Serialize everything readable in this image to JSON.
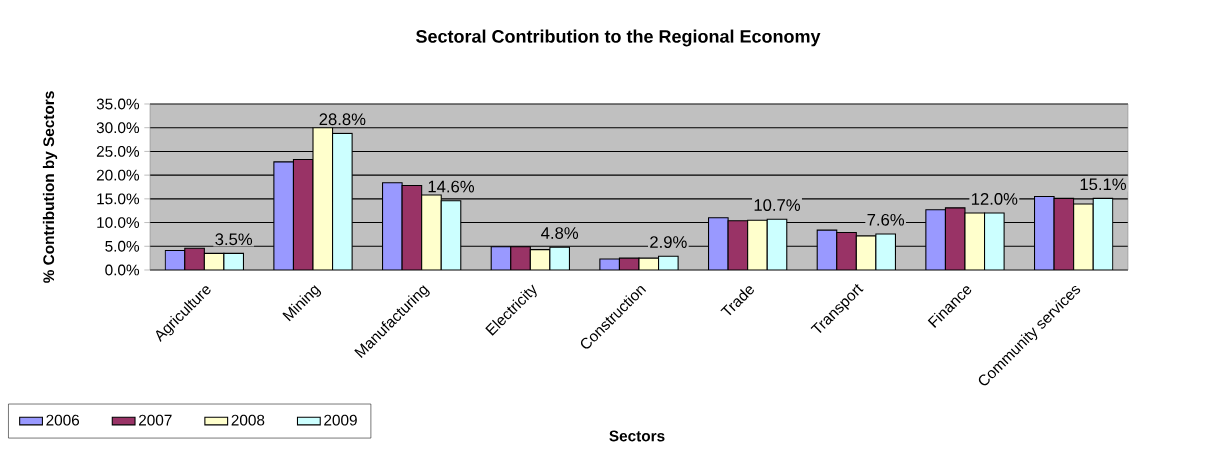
{
  "chart_data": {
    "type": "bar",
    "title": "Sectoral Contribution to the Regional Economy",
    "xlabel": "Sectors",
    "ylabel": "% Contribution by Sectors",
    "categories": [
      "Agriculture",
      "Mining",
      "Manufacturing",
      "Electricity",
      "Construction",
      "Trade",
      "Transport",
      "Finance",
      "Community services"
    ],
    "series": [
      {
        "name": "2006",
        "color": "#9999ff",
        "values": [
          4.1,
          22.8,
          18.4,
          4.9,
          2.3,
          11.0,
          8.4,
          12.7,
          15.5
        ]
      },
      {
        "name": "2007",
        "color": "#993366",
        "values": [
          4.6,
          23.3,
          17.8,
          4.9,
          2.5,
          10.4,
          7.9,
          13.1,
          15.1
        ]
      },
      {
        "name": "2008",
        "color": "#ffffcc",
        "values": [
          3.5,
          30.0,
          15.8,
          4.3,
          2.5,
          10.5,
          7.2,
          12.0,
          13.9
        ]
      },
      {
        "name": "2009",
        "color": "#ccffff",
        "values": [
          3.5,
          28.8,
          14.6,
          4.8,
          2.9,
          10.7,
          7.6,
          12.0,
          15.1
        ],
        "value_labels": [
          "3.5%",
          "28.8%",
          "14.6%",
          "4.8%",
          "2.9%",
          "10.7%",
          "7.6%",
          "12.0%",
          "15.1%"
        ]
      }
    ],
    "ylim": [
      0,
      35
    ],
    "yticks": [
      {
        "value": 0,
        "label": "0.0%"
      },
      {
        "value": 5,
        "label": "5.0%"
      },
      {
        "value": 10,
        "label": "10.0%"
      },
      {
        "value": 15,
        "label": "15.0%"
      },
      {
        "value": 20,
        "label": "20.0%"
      },
      {
        "value": 25,
        "label": "25.0%"
      },
      {
        "value": 30,
        "label": "30.0%"
      },
      {
        "value": 35,
        "label": "35.0%"
      }
    ],
    "grid": "y",
    "legend": "bottom left"
  }
}
